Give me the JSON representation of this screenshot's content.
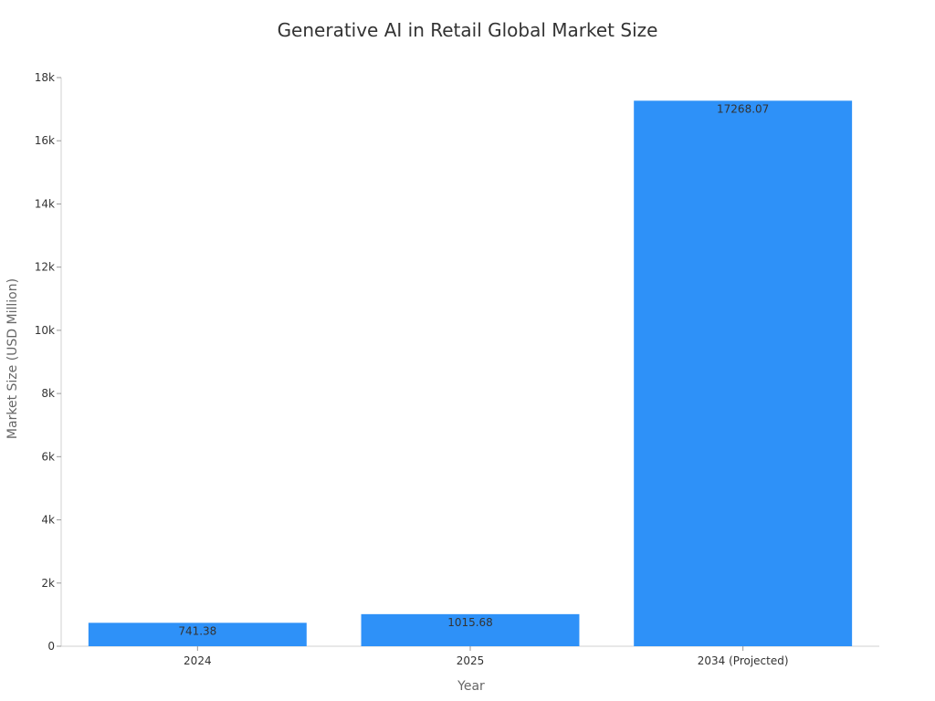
{
  "chart_data": {
    "type": "bar",
    "title": "Generative AI in Retail Global Market Size",
    "xlabel": "Year",
    "ylabel": "Market Size (USD Million)",
    "categories": [
      "2024",
      "2025",
      "2034 (Projected)"
    ],
    "values": [
      741.38,
      1015.68,
      17268.07
    ],
    "data_labels": [
      "741.38",
      "1015.68",
      "17268.07"
    ],
    "ylim": [
      0,
      18000
    ],
    "yticks": [
      0,
      2000,
      4000,
      6000,
      8000,
      10000,
      12000,
      14000,
      16000,
      18000
    ],
    "ytick_labels": [
      "0",
      "2k",
      "4k",
      "6k",
      "8k",
      "10k",
      "12k",
      "14k",
      "16k",
      "18k"
    ],
    "grid": false,
    "legend": "none",
    "bar_color": "#2e91f8"
  }
}
